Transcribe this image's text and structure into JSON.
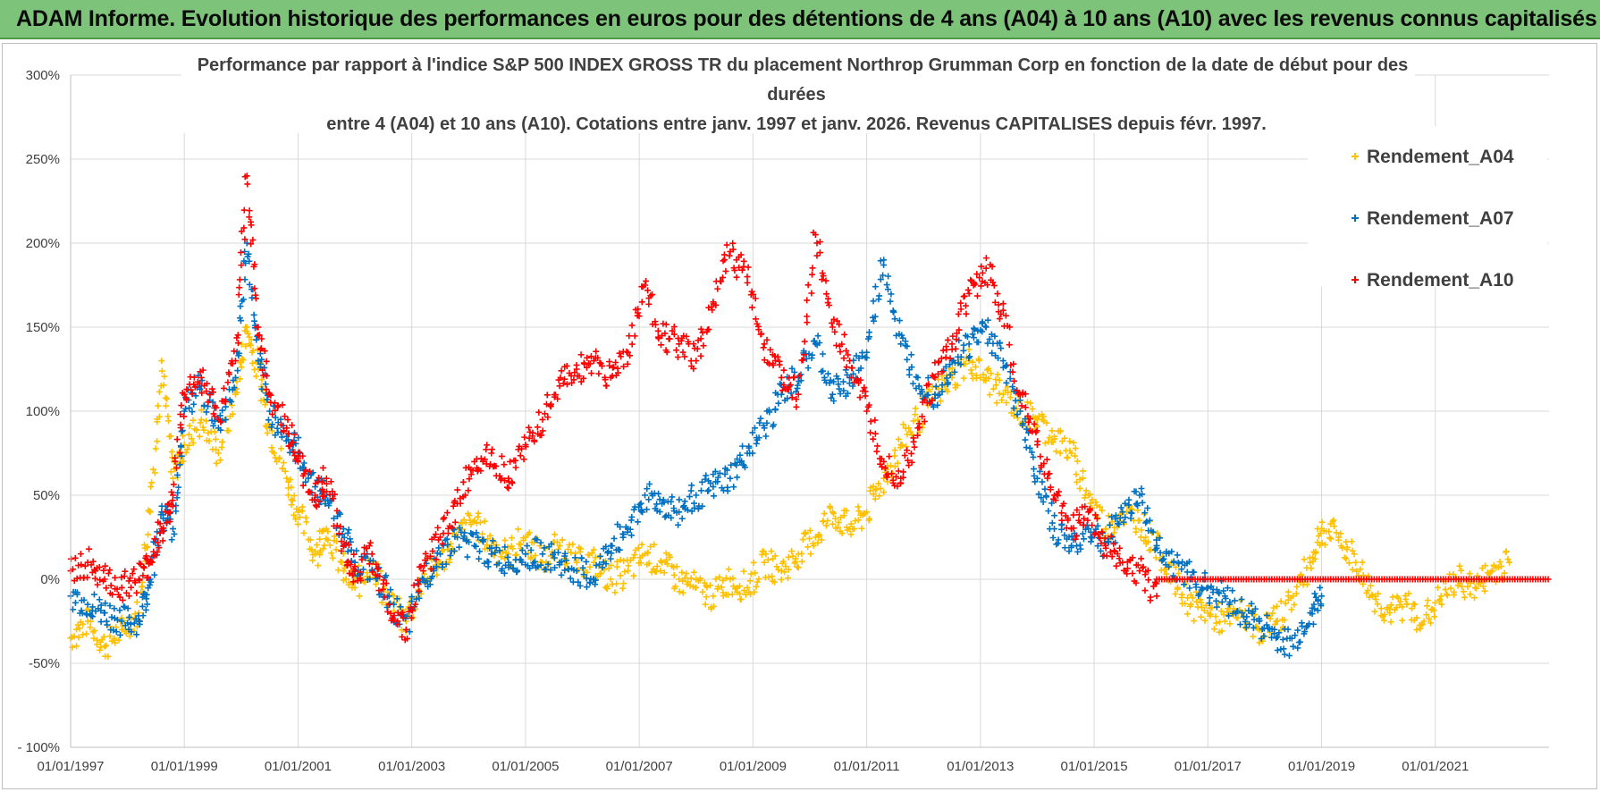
{
  "banner": {
    "title": "ADAM Informe. Evolution historique des performances en euros pour des détentions de 4 ans (A04) à 10 ans (A10) avec les revenus connus capitalisés"
  },
  "colors": {
    "banner_bg": "#7ec37a",
    "A04": "#ffc000",
    "A07": "#0070c0",
    "A10": "#ff0000",
    "grid": "#d9d9d9"
  },
  "chart_data": {
    "type": "scatter",
    "title_lines": [
      "Performance par rapport à l'indice S&P 500 INDEX GROSS TR  du placement Northrop Grumman Corp en fonction de la date de début pour des",
      "durées",
      "entre 4 (A04) et 10 ans (A10).  Cotations entre janv. 1997 et janv. 2026. Revenus CAPITALISES depuis févr. 1997."
    ],
    "xlabel": "",
    "ylabel": "",
    "x_range": [
      1997.0,
      2023.0
    ],
    "ylim": [
      -100,
      300
    ],
    "y_ticks": [
      -100,
      -50,
      0,
      50,
      100,
      150,
      200,
      250,
      300
    ],
    "y_tick_labels": [
      "- 100%",
      "-50%",
      "0%",
      "50%",
      "100%",
      "150%",
      "200%",
      "250%",
      "300%"
    ],
    "x_ticks": [
      1997,
      1999,
      2001,
      2003,
      2005,
      2007,
      2009,
      2011,
      2013,
      2015,
      2017,
      2019,
      2021
    ],
    "x_tick_labels": [
      "01/01/1997",
      "01/01/1999",
      "01/01/2001",
      "01/01/2003",
      "01/01/2005",
      "01/01/2007",
      "01/01/2009",
      "01/01/2011",
      "01/01/2013",
      "01/01/2015",
      "01/01/2017",
      "01/01/2019",
      "01/01/2021"
    ],
    "grid": true,
    "legend_position": "top-right",
    "marker": "+",
    "series": [
      {
        "name": "Rendement_A04",
        "color": "#ffc000",
        "x": [
          1997.0,
          1997.3,
          1997.6,
          1997.9,
          1998.2,
          1998.4,
          1998.6,
          1998.8,
          1999.0,
          1999.3,
          1999.6,
          1999.9,
          2000.1,
          2000.3,
          2000.5,
          2000.8,
          2001.0,
          2001.3,
          2001.5,
          2001.8,
          2002.0,
          2002.3,
          2002.6,
          2002.9,
          2003.2,
          2003.5,
          2003.8,
          2004.1,
          2004.4,
          2004.7,
          2005.0,
          2005.3,
          2005.6,
          2005.9,
          2006.2,
          2006.5,
          2006.8,
          2007.1,
          2007.4,
          2007.7,
          2008.0,
          2008.3,
          2008.6,
          2008.9,
          2009.2,
          2009.5,
          2009.8,
          2010.1,
          2010.4,
          2010.7,
          2011.0,
          2011.3,
          2011.6,
          2011.9,
          2012.2,
          2012.5,
          2012.8,
          2013.1,
          2013.4,
          2013.7,
          2014.0,
          2014.3,
          2014.6,
          2014.9,
          2015.2,
          2015.5,
          2015.8,
          2016.1,
          2016.4,
          2016.7,
          2017.0,
          2017.3,
          2017.6,
          2017.9,
          2018.2,
          2018.5,
          2018.8,
          2019.0,
          2019.3,
          2019.6,
          2019.9,
          2020.2,
          2020.5,
          2020.8,
          2021.1,
          2021.4,
          2021.7,
          2022.0,
          2022.3
        ],
        "y": [
          -35,
          -25,
          -40,
          -30,
          -20,
          40,
          130,
          60,
          80,
          95,
          75,
          110,
          150,
          125,
          90,
          60,
          40,
          15,
          30,
          5,
          -5,
          10,
          -15,
          -25,
          0,
          10,
          25,
          35,
          20,
          15,
          25,
          10,
          20,
          10,
          10,
          0,
          5,
          15,
          10,
          0,
          -5,
          -10,
          0,
          -5,
          10,
          5,
          15,
          25,
          40,
          30,
          40,
          60,
          80,
          95,
          110,
          120,
          130,
          120,
          110,
          100,
          95,
          85,
          75,
          50,
          30,
          40,
          35,
          20,
          0,
          -15,
          -20,
          -25,
          -20,
          -30,
          -25,
          -10,
          10,
          30,
          25,
          10,
          -10,
          -20,
          -15,
          -25,
          -10,
          0,
          -5,
          5,
          10
        ]
      },
      {
        "name": "Rendement_A07",
        "color": "#0070c0",
        "x": [
          1997.0,
          1997.3,
          1997.6,
          1997.9,
          1998.2,
          1998.4,
          1998.6,
          1998.8,
          1999.0,
          1999.3,
          1999.6,
          1999.9,
          2000.1,
          2000.3,
          2000.5,
          2000.8,
          2001.0,
          2001.3,
          2001.5,
          2001.8,
          2002.0,
          2002.3,
          2002.6,
          2002.9,
          2003.2,
          2003.5,
          2003.8,
          2004.1,
          2004.4,
          2004.7,
          2005.0,
          2005.3,
          2005.6,
          2005.9,
          2006.2,
          2006.5,
          2006.8,
          2007.1,
          2007.4,
          2007.7,
          2008.0,
          2008.3,
          2008.6,
          2008.9,
          2009.2,
          2009.5,
          2009.8,
          2010.1,
          2010.4,
          2010.7,
          2011.0,
          2011.3,
          2011.6,
          2011.9,
          2012.2,
          2012.5,
          2012.8,
          2013.1,
          2013.4,
          2013.7,
          2014.0,
          2014.3,
          2014.6,
          2014.9,
          2015.2,
          2015.5,
          2015.8,
          2016.1,
          2016.4,
          2016.7,
          2017.0,
          2017.3,
          2017.6,
          2017.9,
          2018.2,
          2018.5,
          2018.8,
          2019.0
        ],
        "y": [
          -10,
          -15,
          -20,
          -25,
          -25,
          0,
          40,
          30,
          100,
          115,
          90,
          120,
          200,
          130,
          100,
          85,
          75,
          55,
          50,
          30,
          10,
          5,
          -10,
          -30,
          0,
          15,
          25,
          20,
          15,
          10,
          15,
          15,
          10,
          5,
          0,
          20,
          30,
          50,
          45,
          40,
          50,
          55,
          60,
          75,
          90,
          110,
          120,
          140,
          110,
          120,
          135,
          190,
          140,
          120,
          110,
          130,
          140,
          150,
          130,
          100,
          60,
          30,
          20,
          30,
          20,
          40,
          50,
          20,
          10,
          0,
          -5,
          -10,
          -20,
          -25,
          -35,
          -40,
          -20,
          -10
        ]
      },
      {
        "name": "Rendement_A10",
        "color": "#ff0000",
        "x": [
          1997.0,
          1997.3,
          1997.6,
          1997.9,
          1998.2,
          1998.4,
          1998.6,
          1998.8,
          1999.0,
          1999.3,
          1999.6,
          1999.9,
          2000.1,
          2000.3,
          2000.5,
          2000.8,
          2001.0,
          2001.3,
          2001.5,
          2001.8,
          2002.0,
          2002.3,
          2002.6,
          2002.9,
          2003.2,
          2003.5,
          2003.8,
          2004.1,
          2004.4,
          2004.7,
          2005.0,
          2005.3,
          2005.6,
          2005.9,
          2006.2,
          2006.5,
          2006.8,
          2007.1,
          2007.4,
          2007.7,
          2008.0,
          2008.3,
          2008.6,
          2008.9,
          2009.2,
          2009.5,
          2009.8,
          2010.1,
          2010.4,
          2010.7,
          2011.0,
          2011.3,
          2011.6,
          2011.9,
          2012.2,
          2012.5,
          2012.8,
          2013.1,
          2013.4,
          2013.7,
          2014.0,
          2014.3,
          2014.6,
          2014.9,
          2015.2,
          2015.5,
          2015.8,
          2016.1
        ],
        "y": [
          5,
          10,
          0,
          -5,
          0,
          10,
          30,
          50,
          110,
          120,
          95,
          130,
          240,
          150,
          110,
          90,
          70,
          50,
          60,
          20,
          5,
          15,
          -15,
          -30,
          5,
          25,
          45,
          70,
          75,
          60,
          80,
          95,
          115,
          125,
          130,
          120,
          135,
          175,
          145,
          140,
          130,
          165,
          195,
          180,
          140,
          120,
          110,
          205,
          150,
          130,
          100,
          70,
          60,
          90,
          120,
          140,
          170,
          185,
          160,
          110,
          80,
          50,
          30,
          40,
          20,
          10,
          5,
          -10
        ]
      },
      {
        "name": "Rendement_A10 (flat)",
        "color": "#ff0000",
        "x_range_flat": [
          2016.1,
          2023.0
        ],
        "y_flat": 0
      }
    ]
  },
  "legend": [
    {
      "label": "Rendement_A04",
      "color": "#ffc000"
    },
    {
      "label": "Rendement_A07",
      "color": "#0070c0"
    },
    {
      "label": "Rendement_A10",
      "color": "#ff0000"
    }
  ]
}
